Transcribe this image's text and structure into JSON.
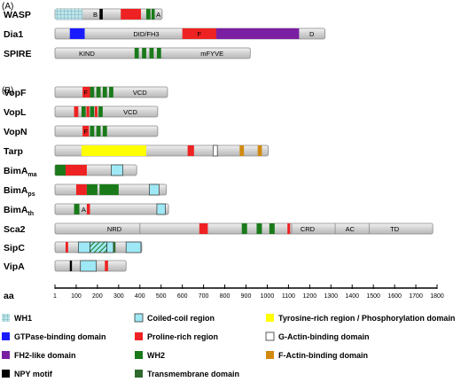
{
  "sections": [
    "(A)",
    "(B)"
  ],
  "colors": {
    "wh1": "#bfe3e8",
    "gtpase": "#1a1aff",
    "fh2": "#7a1fa2",
    "npy": "#000000",
    "coiled": "#9fe8f5",
    "proline": "#ee2222",
    "wh2": "#1a7a1a",
    "tm": "#2e6a2e",
    "tyrosine": "#ffff00",
    "gactin": "#ffffff",
    "factin": "#d08a10",
    "bar": "#d4d4d4"
  },
  "scale": {
    "title": "aa",
    "max": 1800,
    "ticks": [
      "1",
      "100",
      "200",
      "300",
      "400",
      "500",
      "600",
      "700",
      "800",
      "900",
      "1000",
      "1100",
      "1200",
      "1300",
      "1400",
      "1500",
      "1600",
      "1700",
      "1800"
    ]
  },
  "proteins": [
    {
      "name": "WASP",
      "sub": "",
      "length": 505,
      "domains": [
        {
          "type": "wh1",
          "start": 1,
          "end": 130
        },
        {
          "type": "npy",
          "start": 210,
          "end": 225
        },
        {
          "type": "proline",
          "start": 310,
          "end": 405
        },
        {
          "type": "wh2",
          "start": 430,
          "end": 450
        },
        {
          "type": "wh2",
          "start": 455,
          "end": 470
        }
      ],
      "text": [
        {
          "t": "B",
          "at": 190
        },
        {
          "t": "A",
          "at": 487
        }
      ]
    },
    {
      "name": "Dia1",
      "sub": "",
      "length": 1272,
      "domains": [
        {
          "type": "gtpase",
          "start": 70,
          "end": 140
        },
        {
          "type": "proline",
          "start": 600,
          "end": 760
        },
        {
          "type": "fh2",
          "start": 760,
          "end": 1150
        }
      ],
      "text": [
        {
          "t": "DID/FH3",
          "at": 430
        },
        {
          "t": "F",
          "at": 680
        },
        {
          "t": "D",
          "at": 1210
        }
      ]
    },
    {
      "name": "SPIRE",
      "sub": "",
      "length": 920,
      "domains": [
        {
          "type": "wh2",
          "start": 375,
          "end": 395
        },
        {
          "type": "wh2",
          "start": 410,
          "end": 430
        },
        {
          "type": "wh2",
          "start": 445,
          "end": 465
        },
        {
          "type": "wh2",
          "start": 480,
          "end": 500
        }
      ],
      "text": [
        {
          "t": "KIND",
          "at": 150
        },
        {
          "t": "mFYVE",
          "at": 740
        }
      ]
    },
    {
      "name": "VopF",
      "sub": "",
      "length": 530,
      "domains": [
        {
          "type": "proline",
          "start": 130,
          "end": 165
        },
        {
          "type": "wh2",
          "start": 165,
          "end": 185
        },
        {
          "type": "wh2",
          "start": 195,
          "end": 215
        },
        {
          "type": "wh2",
          "start": 225,
          "end": 245
        },
        {
          "type": "wh2",
          "start": 255,
          "end": 275
        }
      ],
      "text": [
        {
          "t": "F",
          "at": 145
        },
        {
          "t": "VCD",
          "at": 400
        }
      ]
    },
    {
      "name": "VopL",
      "sub": "",
      "length": 484,
      "domains": [
        {
          "type": "proline",
          "start": 90,
          "end": 110
        },
        {
          "type": "wh2",
          "start": 125,
          "end": 145
        },
        {
          "type": "proline",
          "start": 148,
          "end": 162
        },
        {
          "type": "wh2",
          "start": 165,
          "end": 185
        },
        {
          "type": "proline",
          "start": 188,
          "end": 200
        },
        {
          "type": "wh2",
          "start": 205,
          "end": 225
        }
      ],
      "text": [
        {
          "t": "VCD",
          "at": 355
        }
      ]
    },
    {
      "name": "VopN",
      "sub": "",
      "length": 484,
      "domains": [
        {
          "type": "proline",
          "start": 130,
          "end": 160
        },
        {
          "type": "wh2",
          "start": 165,
          "end": 185
        },
        {
          "type": "wh2",
          "start": 195,
          "end": 215
        },
        {
          "type": "wh2",
          "start": 225,
          "end": 245
        }
      ],
      "text": [
        {
          "t": "F",
          "at": 145
        }
      ]
    },
    {
      "name": "Tarp",
      "sub": "",
      "length": 1005,
      "domains": [
        {
          "type": "tyrosine",
          "start": 125,
          "end": 430
        },
        {
          "type": "proline",
          "start": 625,
          "end": 655
        },
        {
          "type": "gactin",
          "start": 745,
          "end": 765
        },
        {
          "type": "factin",
          "start": 870,
          "end": 890
        },
        {
          "type": "factin",
          "start": 955,
          "end": 975
        }
      ],
      "text": []
    },
    {
      "name": "BimA",
      "sub": "ma",
      "length": 385,
      "domains": [
        {
          "type": "wh2",
          "start": 1,
          "end": 50
        },
        {
          "type": "proline",
          "start": 50,
          "end": 150
        },
        {
          "type": "coiled",
          "start": 265,
          "end": 320
        }
      ],
      "text": []
    },
    {
      "name": "BimA",
      "sub": "ps",
      "length": 525,
      "domains": [
        {
          "type": "proline",
          "start": 100,
          "end": 150
        },
        {
          "type": "wh2",
          "start": 150,
          "end": 200
        },
        {
          "type": "wh2",
          "start": 210,
          "end": 300
        },
        {
          "type": "coiled",
          "start": 445,
          "end": 490
        }
      ],
      "text": []
    },
    {
      "name": "BimA",
      "sub": "th",
      "length": 535,
      "domains": [
        {
          "type": "wh2",
          "start": 90,
          "end": 115
        },
        {
          "type": "proline",
          "start": 150,
          "end": 165
        },
        {
          "type": "coiled",
          "start": 480,
          "end": 520
        }
      ],
      "text": [
        {
          "t": "A",
          "at": 135
        }
      ]
    },
    {
      "name": "Sca2",
      "sub": "",
      "length": 1780,
      "domains": [
        {
          "type": "proline",
          "start": 680,
          "end": 720
        },
        {
          "type": "wh2",
          "start": 880,
          "end": 905
        },
        {
          "type": "wh2",
          "start": 950,
          "end": 975
        },
        {
          "type": "wh2",
          "start": 1010,
          "end": 1035
        },
        {
          "type": "proline",
          "start": 1095,
          "end": 1108
        }
      ],
      "text": [
        {
          "t": "NRD",
          "at": 280
        },
        {
          "t": "CRD",
          "at": 1190
        },
        {
          "t": "AC",
          "at": 1390
        },
        {
          "t": "TD",
          "at": 1600
        }
      ],
      "dividers": [
        400,
        1115,
        1320,
        1480
      ]
    },
    {
      "name": "SipC",
      "sub": "",
      "length": 409,
      "domains": [
        {
          "type": "proline",
          "start": 50,
          "end": 62
        },
        {
          "type": "coiled",
          "start": 110,
          "end": 165
        },
        {
          "type": "hatch",
          "start": 165,
          "end": 245
        },
        {
          "type": "coiled",
          "start": 245,
          "end": 275
        },
        {
          "type": "tm",
          "start": 275,
          "end": 285
        },
        {
          "type": "coiled",
          "start": 335,
          "end": 405
        }
      ],
      "text": []
    },
    {
      "name": "VipA",
      "sub": "",
      "length": 335,
      "domains": [
        {
          "type": "npy",
          "start": 70,
          "end": 80
        },
        {
          "type": "coiled",
          "start": 120,
          "end": 195
        },
        {
          "type": "proline",
          "start": 235,
          "end": 250
        }
      ],
      "text": []
    }
  ],
  "legend": [
    {
      "type": "wh1",
      "label": "WH1"
    },
    {
      "type": "coiled",
      "label": "Coiled-coil region"
    },
    {
      "type": "tyrosine",
      "label": "Tyrosine-rich region / Phosphorylation domain"
    },
    {
      "type": "gtpase",
      "label": "GTPase-binding domain"
    },
    {
      "type": "proline",
      "label": "Proline-rich region"
    },
    {
      "type": "gactin",
      "label": "G-Actin-binding domain"
    },
    {
      "type": "fh2",
      "label": "FH2-like domain"
    },
    {
      "type": "wh2",
      "label": "WH2"
    },
    {
      "type": "factin",
      "label": "F-Actin-binding domain"
    },
    {
      "type": "npy",
      "label": "NPY motif"
    },
    {
      "type": "tm",
      "label": "Transmembrane domain"
    }
  ]
}
